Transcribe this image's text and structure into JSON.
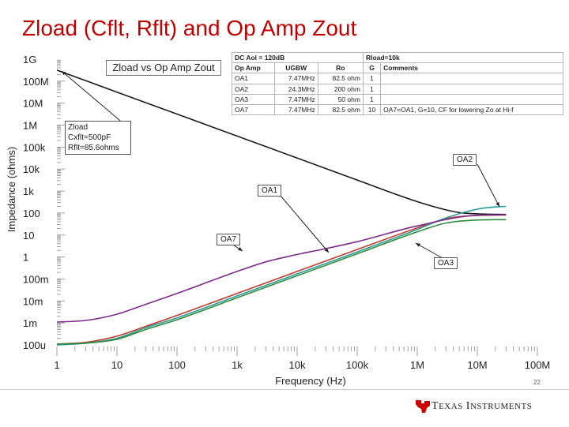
{
  "slide": {
    "title": "Zload (Cflt, Rflt) and Op Amp Zout",
    "page_number": "22",
    "brand": "Texas Instruments"
  },
  "info_table": {
    "top": [
      "DC Aol = 120dB",
      "Rload=10k"
    ],
    "columns": [
      "Op Amp",
      "UGBW",
      "Ro",
      "G",
      "Comments"
    ],
    "rows": [
      [
        "OA1",
        "7.47MHz",
        "82.5 ohm",
        "1",
        ""
      ],
      [
        "OA2",
        "24.3MHz",
        "200 ohm",
        "1",
        ""
      ],
      [
        "OA3",
        "7.47MHz",
        "50 ohm",
        "1",
        ""
      ],
      [
        "OA7",
        "7.47MHz",
        "82.5 ohm",
        "10",
        "OA7=OA1, G=10, CF for lowering Zo at Hi-f"
      ]
    ]
  },
  "annotations": {
    "zload_box": [
      "Zload",
      "Cxflt=500pF",
      "Rflt=85.6ohms"
    ],
    "legend_title": "Zload vs Op Amp Zout",
    "callouts": [
      "OA2",
      "OA1",
      "OA7",
      "OA3"
    ]
  },
  "chart_data": {
    "type": "line",
    "title": "",
    "xlabel": "Frequency (Hz)",
    "ylabel": "Impedance (ohms)",
    "x_scale": "log",
    "y_scale": "log",
    "xlim": [
      1,
      100000000
    ],
    "ylim": [
      0.0001,
      1000000000
    ],
    "x_tick_values": [
      1,
      10,
      100,
      1000,
      10000,
      100000,
      1000000,
      10000000,
      100000000
    ],
    "x_tick_labels": [
      "1",
      "10",
      "100",
      "1k",
      "10k",
      "100k",
      "1M",
      "10M",
      "100M"
    ],
    "y_tick_values": [
      0.0001,
      0.001,
      0.01,
      0.1,
      1,
      10,
      100,
      1000,
      10000,
      100000,
      1000000,
      10000000,
      100000000,
      1000000000
    ],
    "y_tick_labels": [
      "100u",
      "1m",
      "10m",
      "100m",
      "1",
      "10",
      "100",
      "1k",
      "10k",
      "100k",
      "1M",
      "10M",
      "100M",
      "1G"
    ],
    "grid": false,
    "series": [
      {
        "name": "Zload",
        "color": "#1a1a1a",
        "x": [
          1,
          10,
          100,
          1000,
          10000,
          100000,
          1000000,
          3000000,
          5000000,
          10000000,
          30000000
        ],
        "y": [
          318000000,
          31800000,
          3180000,
          318000,
          31800,
          3180,
          330,
          140,
          105,
          92,
          86
        ]
      },
      {
        "name": "OA1",
        "color": "#c0392b",
        "x": [
          1,
          3,
          10,
          30,
          100,
          1000,
          10000,
          100000,
          1000000,
          3000000,
          10000000,
          30000000
        ],
        "y": [
          0.00011,
          0.00013,
          0.00025,
          0.0007,
          0.0022,
          0.022,
          0.22,
          2.2,
          21,
          55,
          78,
          82
        ]
      },
      {
        "name": "OA2",
        "color": "#2a9a9a",
        "x": [
          1,
          3,
          10,
          30,
          100,
          1000,
          10000,
          100000,
          1000000,
          3000000,
          10000000,
          20000000,
          30000000
        ],
        "y": [
          0.0001,
          0.00012,
          0.0002,
          0.0006,
          0.0017,
          0.017,
          0.17,
          1.7,
          18,
          60,
          150,
          190,
          200
        ]
      },
      {
        "name": "OA3",
        "color": "#2e8b3a",
        "x": [
          1,
          3,
          10,
          30,
          100,
          1000,
          10000,
          100000,
          1000000,
          3000000,
          10000000,
          30000000
        ],
        "y": [
          0.00011,
          0.00012,
          0.00018,
          0.0005,
          0.0014,
          0.014,
          0.14,
          1.4,
          14,
          35,
          48,
          50
        ]
      },
      {
        "name": "OA7",
        "color": "#7d2a8c",
        "x": [
          1,
          3,
          10,
          30,
          100,
          1000,
          3000,
          10000,
          30000,
          100000,
          1000000,
          10000000,
          30000000
        ],
        "y": [
          0.0011,
          0.0013,
          0.0025,
          0.007,
          0.022,
          0.22,
          0.6,
          1.3,
          2.4,
          5,
          26,
          79,
          82
        ]
      }
    ]
  }
}
